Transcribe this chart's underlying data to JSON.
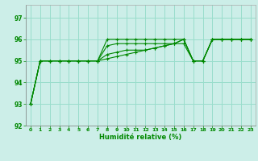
{
  "xlabel": "Humidité relative (%)",
  "background_color": "#cceee8",
  "grid_color": "#99ddcc",
  "line_color": "#008800",
  "xlim": [
    -0.5,
    23.5
  ],
  "ylim": [
    92,
    97.6
  ],
  "yticks": [
    92,
    93,
    94,
    95,
    96,
    97
  ],
  "xticks": [
    0,
    1,
    2,
    3,
    4,
    5,
    6,
    7,
    8,
    9,
    10,
    11,
    12,
    13,
    14,
    15,
    16,
    17,
    18,
    19,
    20,
    21,
    22,
    23
  ],
  "series_a": [
    93,
    95,
    95,
    95,
    95,
    95,
    95,
    95,
    96,
    96,
    96,
    96,
    96,
    96,
    96,
    96,
    96,
    95,
    95,
    96,
    96,
    96,
    96,
    96
  ],
  "series_b": [
    93,
    95,
    95,
    95,
    95,
    95,
    95,
    95,
    95.7,
    95.8,
    95.8,
    95.8,
    95.8,
    95.8,
    95.8,
    95.8,
    96,
    95,
    95,
    96,
    96,
    96,
    96,
    96
  ],
  "series_c": [
    93,
    95,
    95,
    95,
    95,
    95,
    95,
    95,
    95.3,
    95.4,
    95.5,
    95.5,
    95.5,
    95.6,
    95.7,
    95.8,
    96,
    95,
    95,
    96,
    96,
    96,
    96,
    96
  ],
  "series_d": [
    93,
    95,
    95,
    95,
    95,
    95,
    95,
    95,
    95.1,
    95.2,
    95.3,
    95.4,
    95.5,
    95.6,
    95.7,
    95.8,
    95.8,
    95,
    95,
    96,
    96,
    96,
    96,
    96
  ]
}
